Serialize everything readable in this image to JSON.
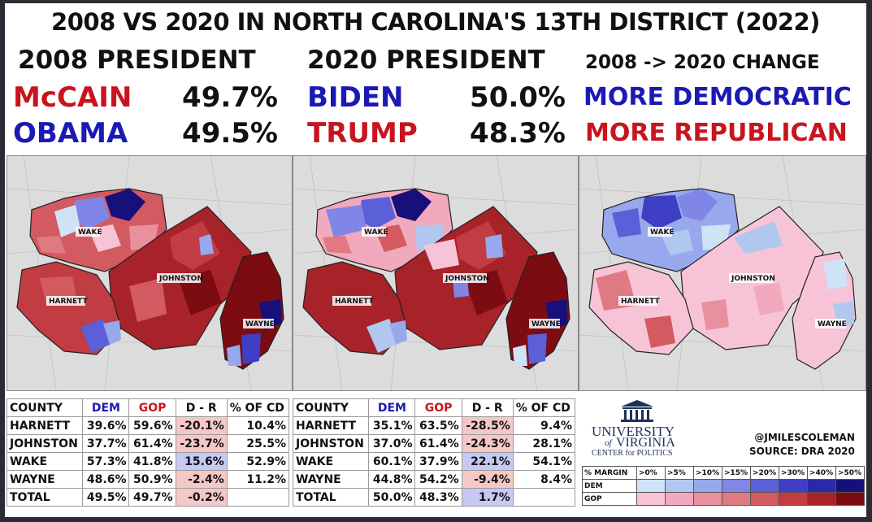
{
  "title": "2008 VS 2020 IN NORTH CAROLINA'S 13TH DISTRICT (2022)",
  "headers": {
    "p2008": "2008 PRESIDENT",
    "p2020": "2020 PRESIDENT",
    "change": "2008 -> 2020 CHANGE"
  },
  "results_2008": [
    {
      "name": "McCAIN",
      "pct": "49.7%",
      "party": "gop"
    },
    {
      "name": "OBAMA",
      "pct": "49.5%",
      "party": "dem"
    }
  ],
  "results_2020": [
    {
      "name": "BIDEN",
      "pct": "50.0%",
      "party": "dem"
    },
    {
      "name": "TRUMP",
      "pct": "48.3%",
      "party": "gop"
    }
  ],
  "change_labels": {
    "dem": "MORE DEMOCRATIC",
    "gop": "MORE REPUBLICAN"
  },
  "county_labels": {
    "wake": "WAKE",
    "johnston": "JOHNSTON",
    "harnett": "HARNETT",
    "wayne": "WAYNE"
  },
  "colors": {
    "dem_scale": [
      "#cfe3f7",
      "#b0c8f0",
      "#98a8ec",
      "#7f86e6",
      "#5b5fd8",
      "#3e3fc4",
      "#2b2aa6",
      "#17107a"
    ],
    "gop_scale": [
      "#f7c3d7",
      "#f0a9bd",
      "#e9909f",
      "#e07a82",
      "#d35a60",
      "#c23c43",
      "#a82229",
      "#7c0c12"
    ],
    "map_bg": "#dcdcdc"
  },
  "table_columns": {
    "county": "COUNTY",
    "dem": "DEM",
    "gop": "GOP",
    "dr": "D - R",
    "share": "% OF CD"
  },
  "table_2008": [
    {
      "county": "HARNETT",
      "dem": "39.6%",
      "gop": "59.6%",
      "dr": "-20.1%",
      "share": "10.4%"
    },
    {
      "county": "JOHNSTON",
      "dem": "37.7%",
      "gop": "61.4%",
      "dr": "-23.7%",
      "share": "25.5%"
    },
    {
      "county": "WAKE",
      "dem": "57.3%",
      "gop": "41.8%",
      "dr": "15.6%",
      "share": "52.9%"
    },
    {
      "county": "WAYNE",
      "dem": "48.6%",
      "gop": "50.9%",
      "dr": "-2.4%",
      "share": "11.2%"
    },
    {
      "county": "TOTAL",
      "dem": "49.5%",
      "gop": "49.7%",
      "dr": "-0.2%",
      "share": ""
    }
  ],
  "table_2020": [
    {
      "county": "HARNETT",
      "dem": "35.1%",
      "gop": "63.5%",
      "dr": "-28.5%",
      "share": "9.4%"
    },
    {
      "county": "JOHNSTON",
      "dem": "37.0%",
      "gop": "61.4%",
      "dr": "-24.3%",
      "share": "28.1%"
    },
    {
      "county": "WAKE",
      "dem": "60.1%",
      "gop": "37.9%",
      "dr": "22.1%",
      "share": "54.1%"
    },
    {
      "county": "WAYNE",
      "dem": "44.8%",
      "gop": "54.2%",
      "dr": "-9.4%",
      "share": "8.4%"
    },
    {
      "county": "TOTAL",
      "dem": "50.0%",
      "gop": "48.3%",
      "dr": "1.7%",
      "share": ""
    }
  ],
  "logo": {
    "line1": "UNIVERSITY",
    "line2": "of",
    "line3": "VIRGINIA",
    "line4": "CENTER for POLITICS"
  },
  "credit": {
    "handle": "@JMILESCOLEMAN",
    "source": "SOURCE: DRA 2020"
  },
  "legend": {
    "header": "% MARGIN",
    "bins": [
      ">0%",
      ">5%",
      ">10%",
      ">15%",
      ">20%",
      ">30%",
      ">40%",
      ">50%"
    ],
    "dem": "DEM",
    "gop": "GOP"
  }
}
